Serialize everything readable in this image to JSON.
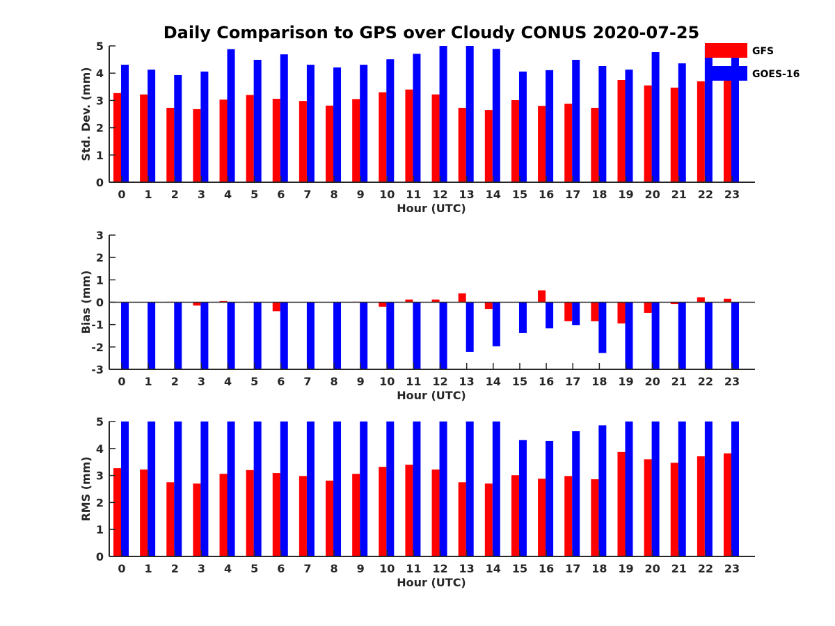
{
  "title": "Daily Comparison to GPS over Cloudy CONUS 2020-07-25",
  "legend": {
    "placement": "top-right",
    "entries": [
      {
        "name": "GFS",
        "color": "#ff0000"
      },
      {
        "name": "GOES-16",
        "color": "#0000ff"
      }
    ]
  },
  "chart_data": [
    {
      "type": "bar",
      "xlabel": "Hour (UTC)",
      "ylabel": "Std. Dev. (mm)",
      "ylim": [
        0,
        5
      ],
      "yticks": [
        0,
        1,
        2,
        3,
        4,
        5
      ],
      "categories": [
        "0",
        "1",
        "2",
        "3",
        "4",
        "5",
        "6",
        "7",
        "8",
        "9",
        "10",
        "11",
        "12",
        "13",
        "14",
        "15",
        "16",
        "17",
        "18",
        "19",
        "20",
        "21",
        "22",
        "23"
      ],
      "series": [
        {
          "name": "GFS",
          "color": "#ff0000",
          "values": [
            3.27,
            3.22,
            2.73,
            2.68,
            3.03,
            3.2,
            3.06,
            2.98,
            2.81,
            3.05,
            3.3,
            3.4,
            3.22,
            2.73,
            2.65,
            3.01,
            2.8,
            2.88,
            2.73,
            3.75,
            3.55,
            3.47,
            3.7,
            3.8
          ]
        },
        {
          "name": "GOES-16",
          "color": "#0000ff",
          "values": [
            4.31,
            4.13,
            3.93,
            4.06,
            4.88,
            4.49,
            4.69,
            4.31,
            4.21,
            4.31,
            4.51,
            4.71,
            5.0,
            5.0,
            4.89,
            4.06,
            4.11,
            4.49,
            4.26,
            4.13,
            4.77,
            4.36,
            5.0,
            4.7
          ]
        }
      ]
    },
    {
      "type": "bar",
      "xlabel": "Hour (UTC)",
      "ylabel": "Bias (mm)",
      "ylim": [
        -3,
        3
      ],
      "yticks": [
        -3,
        -2,
        -1,
        0,
        1,
        2,
        3
      ],
      "categories": [
        "0",
        "1",
        "2",
        "3",
        "4",
        "5",
        "6",
        "7",
        "8",
        "9",
        "10",
        "11",
        "12",
        "13",
        "14",
        "15",
        "16",
        "17",
        "18",
        "19",
        "20",
        "21",
        "22",
        "23"
      ],
      "series": [
        {
          "name": "GFS",
          "color": "#ff0000",
          "values": [
            0.0,
            0.0,
            0.02,
            -0.15,
            0.05,
            0.02,
            -0.4,
            0.0,
            0.0,
            0.02,
            -0.2,
            0.12,
            0.12,
            0.4,
            -0.3,
            0.0,
            0.53,
            -0.85,
            -0.85,
            -0.95,
            -0.48,
            -0.08,
            0.22,
            0.15
          ]
        },
        {
          "name": "GOES-16",
          "color": "#0000ff",
          "values": [
            -3.0,
            -3.0,
            -3.0,
            -3.0,
            -3.0,
            -3.0,
            -3.0,
            -3.0,
            -3.0,
            -3.0,
            -3.0,
            -3.0,
            -3.0,
            -2.22,
            -1.97,
            -1.38,
            -1.17,
            -1.02,
            -2.27,
            -3.0,
            -3.0,
            -3.0,
            -3.0,
            -3.0
          ]
        }
      ]
    },
    {
      "type": "bar",
      "xlabel": "Hour (UTC)",
      "ylabel": "RMS (mm)",
      "ylim": [
        0,
        5
      ],
      "yticks": [
        0,
        1,
        2,
        3,
        4,
        5
      ],
      "categories": [
        "0",
        "1",
        "2",
        "3",
        "4",
        "5",
        "6",
        "7",
        "8",
        "9",
        "10",
        "11",
        "12",
        "13",
        "14",
        "15",
        "16",
        "17",
        "18",
        "19",
        "20",
        "21",
        "22",
        "23"
      ],
      "series": [
        {
          "name": "GFS",
          "color": "#ff0000",
          "values": [
            3.27,
            3.22,
            2.75,
            2.7,
            3.06,
            3.2,
            3.09,
            2.98,
            2.81,
            3.06,
            3.32,
            3.4,
            3.22,
            2.75,
            2.7,
            3.01,
            2.88,
            2.98,
            2.86,
            3.87,
            3.6,
            3.47,
            3.71,
            3.82
          ]
        },
        {
          "name": "GOES-16",
          "color": "#0000ff",
          "values": [
            5.0,
            5.0,
            5.0,
            5.0,
            5.0,
            5.0,
            5.0,
            5.0,
            5.0,
            5.0,
            5.0,
            5.0,
            5.0,
            5.0,
            5.0,
            4.31,
            4.28,
            4.64,
            4.86,
            5.0,
            5.0,
            5.0,
            5.0,
            5.0
          ]
        }
      ]
    }
  ]
}
